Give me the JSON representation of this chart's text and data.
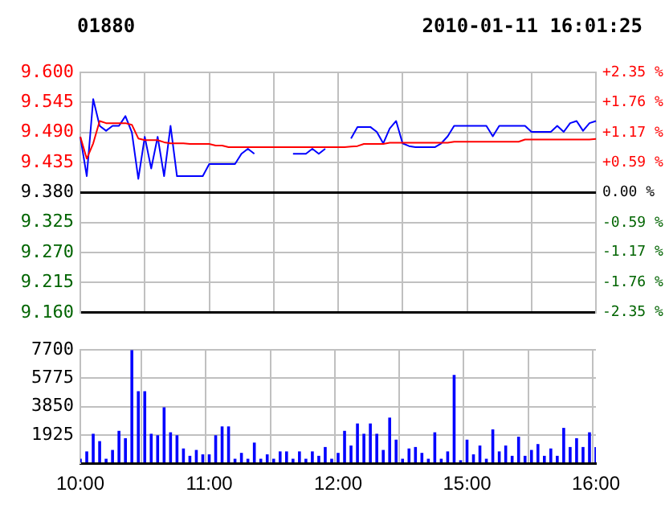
{
  "chart_data": [
    {
      "type": "line",
      "title": "01880",
      "subtitle": "2010-01-11 16:01:25",
      "series": [
        {
          "color": "#0000ff",
          "values": [
            9.482,
            9.41,
            9.551,
            9.502,
            9.493,
            9.502,
            9.502,
            9.52,
            9.49,
            9.405,
            9.482,
            9.424,
            9.482,
            9.41,
            9.502,
            9.41,
            9.41,
            9.41,
            9.41,
            9.41,
            9.432,
            9.432,
            9.432,
            9.432,
            9.432,
            9.451,
            9.46,
            9.451,
            null,
            null,
            null,
            null,
            null,
            9.451,
            9.451,
            9.451,
            9.46,
            9.451,
            9.46,
            null,
            null,
            null,
            9.479,
            9.5,
            9.5,
            9.5,
            9.491,
            9.47,
            9.497,
            9.511,
            9.47,
            9.465,
            9.463,
            9.463,
            9.463,
            9.463,
            9.47,
            9.483,
            9.502,
            9.502,
            9.502,
            9.502,
            9.502,
            9.502,
            9.483,
            9.502,
            9.502,
            9.502,
            9.502,
            9.502,
            9.491,
            9.491,
            9.491,
            9.491,
            9.502,
            9.491,
            9.507,
            9.511,
            9.493,
            9.507,
            9.511
          ]
        },
        {
          "color": "#ff0000",
          "values": [
            9.482,
            9.442,
            9.47,
            9.511,
            9.507,
            9.507,
            9.507,
            9.507,
            9.504,
            9.479,
            9.476,
            9.476,
            9.476,
            9.472,
            9.47,
            9.47,
            9.47,
            9.469,
            9.469,
            9.469,
            9.469,
            9.466,
            9.466,
            9.463,
            9.463,
            9.463,
            9.463,
            9.463,
            9.463,
            9.463,
            9.463,
            9.463,
            9.463,
            9.463,
            9.463,
            9.463,
            9.463,
            9.463,
            9.463,
            9.463,
            9.463,
            9.463,
            9.464,
            9.465,
            9.469,
            9.469,
            9.469,
            9.469,
            9.471,
            9.471,
            9.471,
            9.471,
            9.471,
            9.471,
            9.471,
            9.471,
            9.471,
            9.471,
            9.473,
            9.473,
            9.473,
            9.473,
            9.473,
            9.473,
            9.473,
            9.473,
            9.473,
            9.473,
            9.473,
            9.477,
            9.477,
            9.477,
            9.477,
            9.477,
            9.477,
            9.477,
            9.477,
            9.477,
            9.477,
            9.477,
            9.478
          ]
        }
      ],
      "ylim": [
        9.16,
        9.6
      ],
      "yticks": [
        {
          "value": 9.16,
          "label": "9.160"
        },
        {
          "value": 9.215,
          "label": "9.215"
        },
        {
          "value": 9.27,
          "label": "9.270"
        },
        {
          "value": 9.325,
          "label": "9.325"
        },
        {
          "value": 9.38,
          "label": "9.380"
        },
        {
          "value": 9.435,
          "label": "9.435"
        },
        {
          "value": 9.49,
          "label": "9.490"
        },
        {
          "value": 9.545,
          "label": "9.545"
        },
        {
          "value": 9.6,
          "label": "9.600"
        }
      ],
      "y2lim": [
        -2.35,
        2.35
      ],
      "y2ticks": [
        {
          "value": -2.35,
          "label": "-2.35 %"
        },
        {
          "value": -1.76,
          "label": "-1.76 %"
        },
        {
          "value": -1.17,
          "label": "-1.17 %"
        },
        {
          "value": -0.59,
          "label": "-0.59 %"
        },
        {
          "value": 0,
          "label": "0.00 %"
        },
        {
          "value": 0.59,
          "label": "+0.59 %"
        },
        {
          "value": 1.17,
          "label": "+1.17 %"
        },
        {
          "value": 1.76,
          "label": "+1.76 %"
        },
        {
          "value": 2.35,
          "label": "+2.35 %"
        }
      ],
      "ref_lines": [
        {
          "axis": "y",
          "value": 9.38,
          "color": "#000000"
        }
      ],
      "grid": true,
      "legend": false,
      "tick_labels": "y",
      "marker": "none"
    },
    {
      "type": "bar",
      "categories": [
        "10:00",
        null,
        null,
        null,
        null,
        null,
        null,
        null,
        null,
        null,
        null,
        null,
        null,
        null,
        null,
        null,
        null,
        null,
        null,
        null,
        "11:00",
        null,
        null,
        null,
        null,
        null,
        null,
        null,
        null,
        null,
        null,
        null,
        null,
        null,
        null,
        null,
        null,
        null,
        null,
        null,
        "12:00",
        null,
        null,
        null,
        null,
        null,
        null,
        null,
        null,
        null,
        null,
        null,
        null,
        null,
        null,
        null,
        null,
        null,
        null,
        null,
        "15:00",
        null,
        null,
        null,
        null,
        null,
        null,
        null,
        null,
        null,
        null,
        null,
        null,
        null,
        null,
        null,
        null,
        null,
        null,
        null,
        "16:00"
      ],
      "values": [
        300,
        800,
        2000,
        1500,
        300,
        900,
        2200,
        1700,
        7700,
        4900,
        4900,
        2000,
        1900,
        3800,
        2100,
        1900,
        1000,
        500,
        900,
        600,
        600,
        1900,
        2500,
        2500,
        300,
        700,
        300,
        1400,
        300,
        600,
        300,
        800,
        800,
        300,
        800,
        300,
        800,
        500,
        1100,
        300,
        700,
        2200,
        1200,
        2700,
        2000,
        2700,
        2000,
        900,
        3100,
        1600,
        300,
        1000,
        1100,
        700,
        300,
        2100,
        300,
        800,
        6000,
        200,
        1600,
        600,
        1200,
        300,
        2300,
        800,
        1200,
        500,
        1800,
        500,
        900,
        1300,
        500,
        1000,
        500,
        2400,
        1100,
        1700,
        1100,
        2100,
        1100
      ],
      "color": "#0000ff",
      "ylim": [
        0,
        7700
      ],
      "yticks": [
        {
          "value": 0,
          "label": null
        },
        1925,
        3850,
        5775,
        7700
      ],
      "grid": true,
      "legend": false
    }
  ]
}
